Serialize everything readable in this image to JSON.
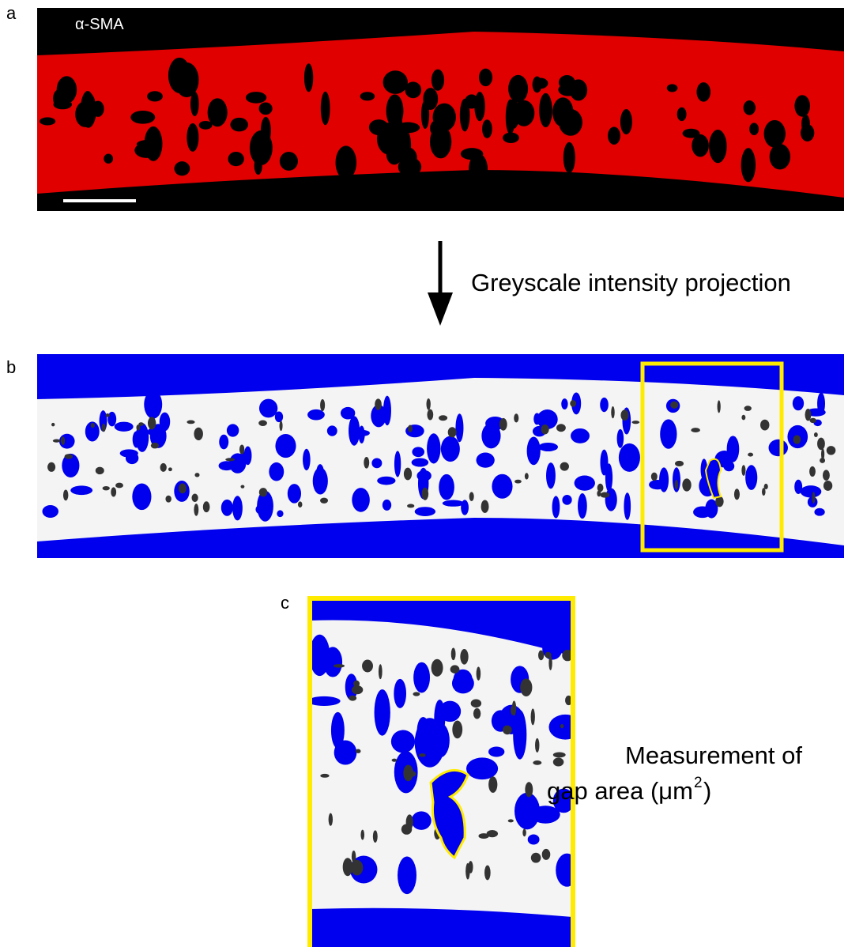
{
  "panels": [
    {
      "label": "a",
      "stain": "α-SMA"
    },
    {
      "label": "b"
    },
    {
      "label": "c"
    }
  ],
  "arrow_caption": "Greyscale intensity projection",
  "measurement_caption": {
    "lines": [
      "Measurement of",
      "gap area (μm"
    ],
    "superscript": "2",
    "close": ")"
  }
}
